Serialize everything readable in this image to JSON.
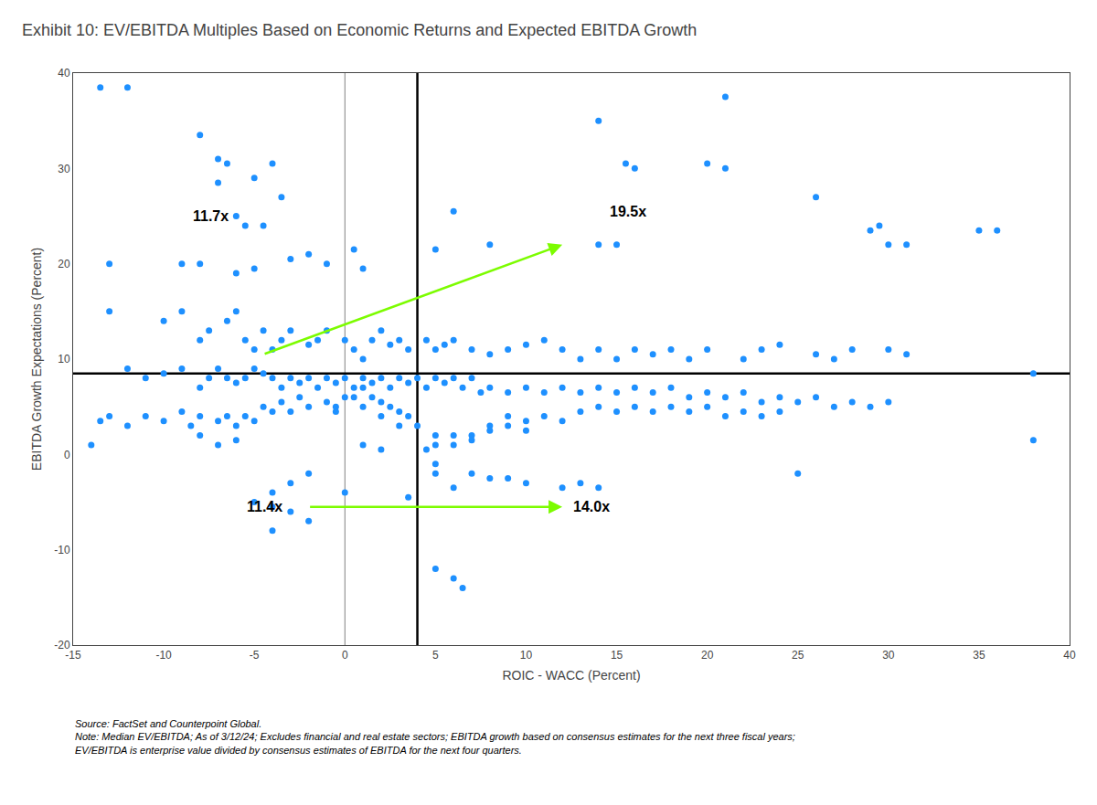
{
  "chart_data": {
    "type": "scatter",
    "title": "Exhibit 10: EV/EBITDA Multiples Based on Economic Returns and Expected EBITDA Growth",
    "xlabel": "ROIC - WACC (Percent)",
    "ylabel": "EBITDA Growth Expectations (Percent)",
    "color": "#1E90FF",
    "x": [
      -13.5,
      -12,
      -8,
      -7,
      -6.5,
      -5,
      -7,
      -4,
      -3.5,
      -6,
      -5.5,
      -4.5,
      -13,
      -9,
      -8,
      -6,
      -5,
      -3,
      -2,
      -1,
      0.5,
      1,
      5,
      6,
      8,
      14,
      15,
      15.5,
      16,
      21,
      14,
      20,
      21,
      26,
      29,
      29.5,
      30,
      31,
      35,
      36,
      -13,
      -10,
      -9,
      -8,
      -7.5,
      -6.5,
      -6,
      -5,
      -5.5,
      -4.5,
      -4,
      -3.5,
      -3,
      -2,
      -1.5,
      -1,
      0,
      0.5,
      1,
      1.5,
      2,
      2.5,
      3,
      3.5,
      4.5,
      5,
      5.5,
      6,
      7,
      8,
      9,
      10,
      11,
      12,
      13,
      14,
      15,
      16,
      17,
      18,
      19,
      20,
      22,
      23,
      24,
      26,
      27,
      28,
      30,
      31,
      38,
      -12,
      -11,
      -10,
      -9,
      -8,
      -7.5,
      -7,
      -6.5,
      -6,
      -5.5,
      -5,
      -4.5,
      -4,
      -3.5,
      -3,
      -2.5,
      -2,
      -1.5,
      -1,
      -0.5,
      0,
      0.5,
      1,
      1.5,
      2,
      2.5,
      3,
      3.5,
      4,
      4.5,
      5,
      5.5,
      6,
      6.5,
      7,
      7.5,
      8,
      9,
      10,
      11,
      12,
      13,
      14,
      15,
      16,
      17,
      18,
      19,
      20,
      21,
      22,
      23,
      24,
      25,
      26,
      27,
      28,
      29,
      30,
      13,
      14,
      15,
      16,
      17,
      18,
      19,
      20,
      21,
      22,
      23,
      24,
      9,
      10,
      11,
      12,
      8,
      9,
      10,
      7,
      8,
      6,
      7,
      5,
      6,
      4.5,
      5,
      5,
      6,
      7,
      8,
      9,
      10,
      12,
      13,
      14,
      5,
      6,
      6.5,
      -2,
      -3,
      -4,
      -5,
      -4,
      -3,
      -2,
      -4,
      25,
      38,
      5,
      -6,
      -7,
      -8,
      1,
      2,
      0,
      3.5,
      3,
      4,
      3.5,
      2,
      2.5,
      3,
      1,
      1.5,
      2,
      0.5,
      1,
      -0.5,
      0,
      -1,
      -0.5,
      -2,
      -2.5,
      -3,
      -3.5,
      -4,
      -4.5,
      -5,
      -5.5,
      -6,
      -6.5,
      -7,
      -8,
      -8.5,
      -9,
      -10,
      -11,
      -12,
      -13,
      -13.5,
      -14
    ],
    "values": [
      38.5,
      38.5,
      33.5,
      31,
      30.5,
      29,
      28.5,
      30.5,
      27,
      25,
      24,
      24,
      20,
      20,
      20,
      19,
      19.5,
      20.5,
      21,
      20,
      21.5,
      19.5,
      21.5,
      25.5,
      22,
      22,
      22,
      30.5,
      30,
      37.5,
      35,
      30.5,
      30,
      27,
      23.5,
      24,
      22,
      22,
      23.5,
      23.5,
      15,
      14,
      15,
      12,
      13,
      14,
      15,
      11,
      12,
      13,
      11,
      12,
      13,
      11.5,
      12,
      13,
      12,
      11,
      10,
      12,
      13,
      11.5,
      12,
      11,
      12,
      11,
      11.5,
      12,
      11,
      10.5,
      11,
      11.5,
      12,
      11,
      10,
      11,
      10,
      11,
      10.5,
      11,
      10,
      11,
      10,
      11,
      11.5,
      10.5,
      10,
      11,
      11,
      10.5,
      8.5,
      9,
      8,
      8.5,
      9,
      7,
      8,
      9,
      8,
      7.5,
      8,
      9,
      8.5,
      8,
      7,
      8,
      7.5,
      8,
      7,
      8,
      7.5,
      8,
      7,
      8,
      7.5,
      8,
      7,
      8,
      7.5,
      8,
      7,
      8,
      7.5,
      8,
      7,
      8,
      6.5,
      7,
      6.5,
      7,
      6.5,
      7,
      6.5,
      7,
      6.5,
      7,
      6.5,
      7,
      6,
      6.5,
      6,
      6.5,
      5.5,
      6,
      5.5,
      6,
      5,
      5.5,
      5,
      5.5,
      4.5,
      5,
      4.5,
      5,
      4.5,
      5,
      4.5,
      5,
      4,
      4.5,
      4,
      4.5,
      4,
      3.5,
      4,
      3.5,
      3,
      3,
      2.5,
      2,
      2.5,
      2,
      1.5,
      2,
      1,
      0.5,
      1,
      -2,
      -3.5,
      -2,
      -2.5,
      -2.5,
      -3,
      -3.5,
      -3,
      -3.5,
      -12,
      -13,
      -14,
      -2,
      -3,
      -4,
      -5,
      -5.5,
      -6,
      -7,
      -8,
      -2,
      1.5,
      -1,
      1.5,
      1,
      2,
      1,
      0.5,
      -4,
      -4.5,
      3,
      3,
      4,
      4,
      5,
      4.5,
      5,
      6,
      5.5,
      6,
      7,
      5,
      6,
      5.5,
      4.5,
      5,
      6,
      4.5,
      5.5,
      4.5,
      5,
      3.5,
      4,
      3,
      4,
      3.5,
      4,
      3,
      4.5,
      3.5,
      4,
      3,
      4,
      3.5,
      1
    ],
    "xlim": [
      -15,
      40
    ],
    "ylim": [
      -20,
      40
    ],
    "xticks": [
      -15,
      -10,
      -5,
      0,
      5,
      10,
      15,
      20,
      25,
      30,
      35,
      40
    ],
    "yticks": [
      -20,
      -10,
      0,
      10,
      20,
      30,
      40
    ],
    "grid": false,
    "lines": [
      {
        "axis": "x",
        "value": 0,
        "color": "gray"
      },
      {
        "axis": "x",
        "value": 4,
        "color": "black"
      },
      {
        "axis": "y",
        "value": 8.5,
        "color": "black"
      }
    ],
    "arrows": [
      {
        "start": [
          -4.5,
          10.5
        ],
        "end": [
          12,
          22
        ],
        "color": "#7CFC00"
      },
      {
        "start": [
          -2,
          -5.5
        ],
        "end": [
          12,
          -5.5
        ],
        "color": "#7CFC00"
      }
    ],
    "annotations": [
      {
        "x": -8.5,
        "y": 24,
        "text": "11.7x"
      },
      {
        "x": 14.5,
        "y": 24.5,
        "text": "19.5x"
      },
      {
        "x": -5.5,
        "y": -6.5,
        "text": "11.4x"
      },
      {
        "x": 12.5,
        "y": -6.5,
        "text": "14.0x"
      }
    ],
    "source": "Source: FactSet and Counterpoint Global.\nNote: Median EV/EBITDA; As of 3/12/24; Excludes financial and real estate sectors; EBITDA growth based on consensus estimates for the next three fiscal years; EV/EBITDA is enterprise value divided by consensus estimates of EBITDA for the next four quarters."
  }
}
